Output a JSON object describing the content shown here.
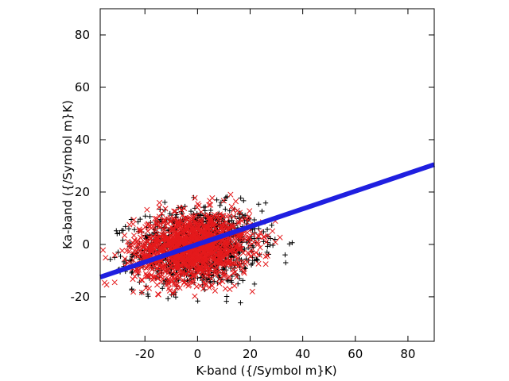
{
  "chart_data": {
    "type": "scatter",
    "title": "",
    "xlabel": "K-band ({/Symbol m}K)",
    "ylabel": "Ka-band ({/Symbol m}K)",
    "xlim": [
      -37,
      90
    ],
    "ylim": [
      -37,
      90
    ],
    "x_ticks": [
      -20,
      0,
      20,
      40,
      60,
      80
    ],
    "y_ticks": [
      -20,
      0,
      20,
      40,
      60,
      80
    ],
    "x_tick_labels": [
      "-20",
      "0",
      "20",
      "40",
      "60",
      "80"
    ],
    "y_tick_labels": [
      "-20",
      "0",
      "20",
      "40",
      "60",
      "80"
    ],
    "grid": false,
    "legend": "none",
    "series": [
      {
        "marker": "plus",
        "color": "#000000",
        "cloud": {
          "center": [
            0,
            -1
          ],
          "spread": [
            12,
            7.5
          ],
          "count": 1100,
          "x_range": [
            -34,
            36
          ],
          "y_range": [
            -25,
            25
          ]
        }
      },
      {
        "marker": "cross",
        "color": "#e41a1c",
        "cloud": {
          "center": [
            -2,
            -1
          ],
          "spread": [
            11,
            6.5
          ],
          "count": 1400,
          "x_range": [
            -37,
            33
          ],
          "y_range": [
            -20,
            22
          ]
        }
      },
      {
        "marker": "line",
        "color": "#1f1fe0",
        "x": [
          -37,
          90
        ],
        "y": [
          -12.5,
          30.5
        ]
      }
    ]
  }
}
